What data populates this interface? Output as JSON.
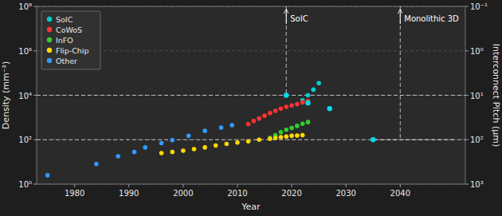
{
  "chart_data": {
    "type": "scatter",
    "xlabel": "Year",
    "ylabel": "Density (mm⁻²)",
    "y2label": "Interconnect Pitch (μm)",
    "log": "y",
    "grid": true,
    "legend": "upper left",
    "xlim": [
      1973,
      2052
    ],
    "xticks": [
      1980,
      1990,
      2000,
      2010,
      2020,
      2030,
      2040
    ],
    "ylim": [
      1,
      100000000
    ],
    "yticks": [
      {
        "value": 1,
        "label": "10⁰"
      },
      {
        "value": 100,
        "label": "10²"
      },
      {
        "value": 10000,
        "label": "10⁴"
      },
      {
        "value": 1000000,
        "label": "10⁶"
      },
      {
        "value": 100000000,
        "label": "10⁸"
      }
    ],
    "y2lim": [
      1000,
      0.1
    ],
    "y2ticks": [
      {
        "value": 0.1,
        "label": "10⁻¹"
      },
      {
        "value": 1,
        "label": "10⁰"
      },
      {
        "value": 10,
        "label": "10¹"
      },
      {
        "value": 100,
        "label": "10²"
      },
      {
        "value": 1000,
        "label": "10³"
      }
    ],
    "series": [
      {
        "name": "SoIC",
        "color": "#00CED1",
        "x": [
          2022,
          2023,
          2024,
          2025
        ],
        "values": [
          6000,
          10000,
          18000,
          35000
        ]
      },
      {
        "name": "CoWoS",
        "color": "#FF3333",
        "x": [
          2012,
          2013,
          2014,
          2015,
          2016,
          2017,
          2018,
          2019,
          2020,
          2021,
          2022,
          2023
        ],
        "values": [
          500,
          700,
          900,
          1200,
          1600,
          2000,
          2500,
          3000,
          3500,
          4000,
          4800,
          5500
        ]
      },
      {
        "name": "InFO",
        "color": "#33CC33",
        "x": [
          2016,
          2017,
          2018,
          2019,
          2020,
          2021,
          2022,
          2023
        ],
        "values": [
          120,
          160,
          220,
          280,
          340,
          420,
          520,
          620
        ]
      },
      {
        "name": "Flip-Chip",
        "color": "#FFD700",
        "x": [
          1996,
          1998,
          2000,
          2002,
          2004,
          2006,
          2008,
          2010,
          2012,
          2014,
          2016,
          2017,
          2018,
          2019,
          2020,
          2021,
          2022
        ],
        "values": [
          25,
          28,
          32,
          38,
          45,
          55,
          65,
          75,
          85,
          100,
          110,
          120,
          130,
          140,
          150,
          155,
          160
        ]
      },
      {
        "name": "Other",
        "color": "#3399FF",
        "x": [
          1975,
          1984,
          1988,
          1991,
          1993,
          1996,
          1998,
          2001,
          2004,
          2007,
          2009
        ],
        "values": [
          2.5,
          8,
          18,
          28,
          45,
          70,
          95,
          150,
          250,
          350,
          450
        ]
      },
      {
        "color": "#00DDEE",
        "axis": "y2",
        "x": [
          2019,
          2023,
          2027,
          2035
        ],
        "values": [
          10,
          15,
          20,
          100
        ]
      }
    ],
    "y2_lines": [
      10,
      100
    ],
    "y2_segments": [
      {
        "x": [
          2035,
          2050
        ],
        "value": 100
      }
    ],
    "annotations": [
      {
        "text": "SoIC",
        "x": 2019,
        "y2_end": 10
      },
      {
        "text": "Monolithic 3D",
        "x": 2040,
        "y2_end": 100
      }
    ]
  }
}
